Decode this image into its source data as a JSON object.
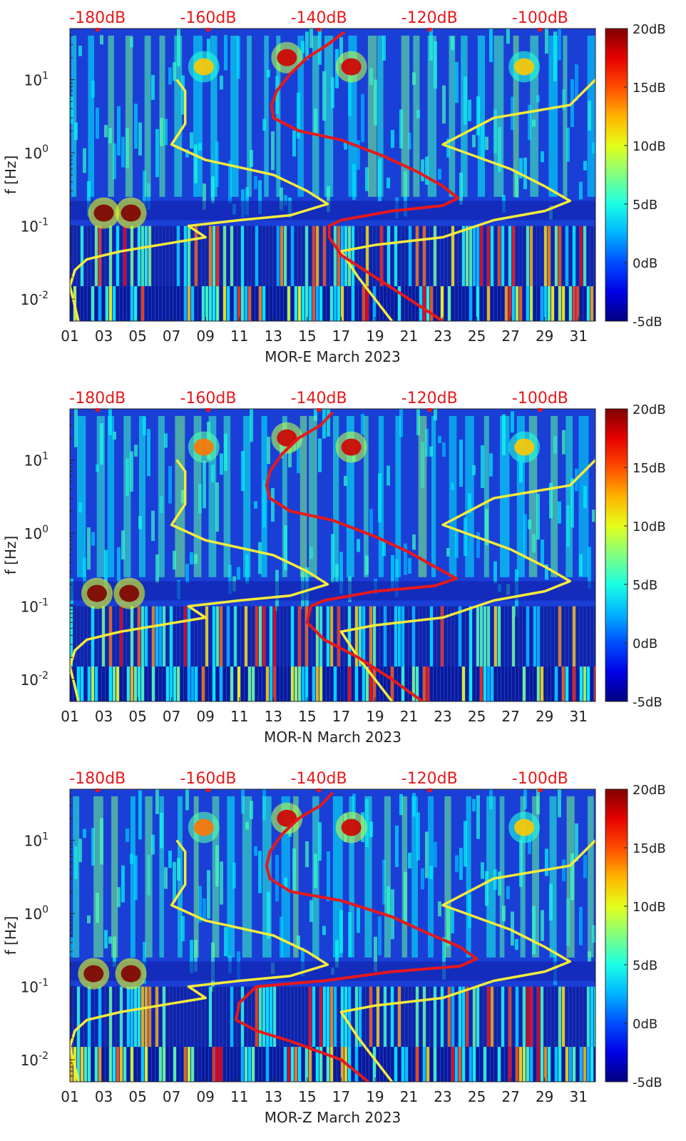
{
  "chart_data": [
    {
      "type": "heatmap",
      "title": "",
      "xlabel": "MOR-E March 2023",
      "ylabel": "f [Hz]",
      "x_ticks": [
        "01",
        "03",
        "05",
        "07",
        "09",
        "11",
        "13",
        "15",
        "17",
        "19",
        "21",
        "23",
        "25",
        "27",
        "29",
        "31"
      ],
      "x_range_days": [
        1,
        32
      ],
      "y_scale": "log",
      "y_range_hz": [
        0.005,
        50
      ],
      "y_ticks": [
        {
          "value": 10,
          "base": "10",
          "exp": "1"
        },
        {
          "value": 1,
          "base": "10",
          "exp": "0"
        },
        {
          "value": 0.1,
          "base": "10",
          "exp": "-1"
        },
        {
          "value": 0.01,
          "base": "10",
          "exp": "-2"
        }
      ],
      "top_axis_ticks": [
        "-180dB",
        "-160dB",
        "-140dB",
        "-120dB",
        "-100dB"
      ],
      "top_axis_range_db": [
        -185,
        -90
      ],
      "colorbar": {
        "ticks": [
          "20dB",
          "15dB",
          "10dB",
          "5dB",
          "0dB",
          "-5dB"
        ],
        "range_db": [
          -5,
          20
        ],
        "colormap": "jet"
      },
      "series": [
        {
          "name": "noise model low",
          "color": "#f5ec3a",
          "points_day_hz": [
            [
              7.3,
              10
            ],
            [
              7.8,
              7
            ],
            [
              7.8,
              2.5
            ],
            [
              7.0,
              1.3
            ],
            [
              9,
              0.8
            ],
            [
              13,
              0.5
            ],
            [
              15,
              0.3
            ],
            [
              16.2,
              0.2
            ],
            [
              14,
              0.14
            ],
            [
              11,
              0.12
            ],
            [
              8,
              0.1
            ],
            [
              9,
              0.07
            ],
            [
              4,
              0.045
            ],
            [
              2,
              0.035
            ],
            [
              1.3,
              0.025
            ],
            [
              1,
              0.015
            ],
            [
              1.3,
              0.008
            ],
            [
              1.5,
              0.005
            ]
          ]
        },
        {
          "name": "noise model high",
          "color": "#f5ec3a",
          "points_day_hz": [
            [
              32,
              10
            ],
            [
              30.5,
              4.5
            ],
            [
              26,
              3
            ],
            [
              23,
              1.3
            ],
            [
              27,
              0.6
            ],
            [
              29,
              0.35
            ],
            [
              30.5,
              0.22
            ],
            [
              29,
              0.16
            ],
            [
              26,
              0.12
            ],
            [
              23,
              0.07
            ],
            [
              19,
              0.055
            ],
            [
              17,
              0.045
            ],
            [
              18,
              0.02
            ],
            [
              19,
              0.01
            ],
            [
              20,
              0.005
            ]
          ]
        },
        {
          "name": "station PSD",
          "color": "#e8181a",
          "points_day_hz": [
            [
              17.2,
              45
            ],
            [
              16.2,
              30
            ],
            [
              15,
              20
            ],
            [
              14,
              12
            ],
            [
              13.2,
              7
            ],
            [
              12.9,
              4.5
            ],
            [
              13,
              3
            ],
            [
              14.5,
              2
            ],
            [
              17,
              1.5
            ],
            [
              19.5,
              0.9
            ],
            [
              21.5,
              0.55
            ],
            [
              23,
              0.35
            ],
            [
              23.9,
              0.24
            ],
            [
              23,
              0.19
            ],
            [
              20,
              0.16
            ],
            [
              17,
              0.12
            ],
            [
              16.3,
              0.1
            ],
            [
              16.3,
              0.07
            ],
            [
              17,
              0.04
            ],
            [
              19,
              0.02
            ],
            [
              21,
              0.01
            ],
            [
              23,
              0.005
            ]
          ]
        }
      ],
      "hot_spots": [
        {
          "day": 3.0,
          "hz": 0.15,
          "level_db": 20
        },
        {
          "day": 4.6,
          "hz": 0.15,
          "level_db": 20
        },
        {
          "day": 13.8,
          "hz": 20,
          "level_db": 18
        },
        {
          "day": 17.6,
          "hz": 15,
          "level_db": 18
        },
        {
          "day": 8.9,
          "hz": 15,
          "level_db": 12
        },
        {
          "day": 27.8,
          "hz": 15,
          "level_db": 12
        }
      ]
    },
    {
      "type": "heatmap",
      "title": "",
      "xlabel": "MOR-N March 2023",
      "ylabel": "f [Hz]",
      "x_ticks": [
        "01",
        "03",
        "05",
        "07",
        "09",
        "11",
        "13",
        "15",
        "17",
        "19",
        "21",
        "23",
        "25",
        "27",
        "29",
        "31"
      ],
      "x_range_days": [
        1,
        32
      ],
      "y_scale": "log",
      "y_range_hz": [
        0.005,
        50
      ],
      "y_ticks": [
        {
          "value": 10,
          "base": "10",
          "exp": "1"
        },
        {
          "value": 1,
          "base": "10",
          "exp": "0"
        },
        {
          "value": 0.1,
          "base": "10",
          "exp": "-1"
        },
        {
          "value": 0.01,
          "base": "10",
          "exp": "-2"
        }
      ],
      "top_axis_ticks": [
        "-180dB",
        "-160dB",
        "-140dB",
        "-120dB",
        "-100dB"
      ],
      "top_axis_range_db": [
        -185,
        -90
      ],
      "colorbar": {
        "ticks": [
          "20dB",
          "15dB",
          "10dB",
          "5dB",
          "0dB",
          "-5dB"
        ],
        "range_db": [
          -5,
          20
        ],
        "colormap": "jet"
      },
      "series": [
        {
          "name": "noise model low",
          "color": "#f5ec3a",
          "points_day_hz": [
            [
              7.3,
              10
            ],
            [
              7.8,
              7
            ],
            [
              7.8,
              2.5
            ],
            [
              7.0,
              1.3
            ],
            [
              9,
              0.8
            ],
            [
              13,
              0.5
            ],
            [
              15,
              0.3
            ],
            [
              16.2,
              0.2
            ],
            [
              14,
              0.14
            ],
            [
              11,
              0.12
            ],
            [
              8,
              0.1
            ],
            [
              9,
              0.07
            ],
            [
              4,
              0.045
            ],
            [
              2,
              0.035
            ],
            [
              1.3,
              0.025
            ],
            [
              1,
              0.015
            ],
            [
              1.3,
              0.008
            ],
            [
              1.5,
              0.005
            ]
          ]
        },
        {
          "name": "noise model high",
          "color": "#f5ec3a",
          "points_day_hz": [
            [
              32,
              10
            ],
            [
              30.5,
              4.5
            ],
            [
              26,
              3
            ],
            [
              23,
              1.3
            ],
            [
              27,
              0.6
            ],
            [
              29,
              0.35
            ],
            [
              30.5,
              0.22
            ],
            [
              29,
              0.16
            ],
            [
              26,
              0.12
            ],
            [
              23,
              0.07
            ],
            [
              19,
              0.055
            ],
            [
              17,
              0.045
            ],
            [
              18,
              0.02
            ],
            [
              19,
              0.01
            ],
            [
              20,
              0.005
            ]
          ]
        },
        {
          "name": "station PSD",
          "color": "#e8181a",
          "points_day_hz": [
            [
              16.5,
              45
            ],
            [
              15.8,
              30
            ],
            [
              14.5,
              20
            ],
            [
              13.5,
              12
            ],
            [
              12.8,
              7
            ],
            [
              12.6,
              4.5
            ],
            [
              12.8,
              3
            ],
            [
              14,
              2
            ],
            [
              16.5,
              1.5
            ],
            [
              19,
              0.9
            ],
            [
              21,
              0.55
            ],
            [
              22.5,
              0.35
            ],
            [
              23.8,
              0.24
            ],
            [
              22.5,
              0.19
            ],
            [
              19,
              0.16
            ],
            [
              16,
              0.12
            ],
            [
              15.2,
              0.1
            ],
            [
              15,
              0.06
            ],
            [
              16,
              0.035
            ],
            [
              18,
              0.02
            ],
            [
              20,
              0.01
            ],
            [
              21.8,
              0.005
            ]
          ]
        }
      ],
      "hot_spots": [
        {
          "day": 2.6,
          "hz": 0.15,
          "level_db": 20
        },
        {
          "day": 4.5,
          "hz": 0.15,
          "level_db": 20
        },
        {
          "day": 13.8,
          "hz": 20,
          "level_db": 18
        },
        {
          "day": 17.6,
          "hz": 15,
          "level_db": 18
        },
        {
          "day": 8.9,
          "hz": 15,
          "level_db": 14
        },
        {
          "day": 27.8,
          "hz": 15,
          "level_db": 12
        }
      ]
    },
    {
      "type": "heatmap",
      "title": "",
      "xlabel": "MOR-Z March 2023",
      "ylabel": "f [Hz]",
      "x_ticks": [
        "01",
        "03",
        "05",
        "07",
        "09",
        "11",
        "13",
        "15",
        "17",
        "19",
        "21",
        "23",
        "25",
        "27",
        "29",
        "31"
      ],
      "x_range_days": [
        1,
        32
      ],
      "y_scale": "log",
      "y_range_hz": [
        0.005,
        50
      ],
      "y_ticks": [
        {
          "value": 10,
          "base": "10",
          "exp": "1"
        },
        {
          "value": 1,
          "base": "10",
          "exp": "0"
        },
        {
          "value": 0.1,
          "base": "10",
          "exp": "-1"
        },
        {
          "value": 0.01,
          "base": "10",
          "exp": "-2"
        }
      ],
      "top_axis_ticks": [
        "-180dB",
        "-160dB",
        "-140dB",
        "-120dB",
        "-100dB"
      ],
      "top_axis_range_db": [
        -185,
        -90
      ],
      "colorbar": {
        "ticks": [
          "20dB",
          "15dB",
          "10dB",
          "5dB",
          "0dB",
          "-5dB"
        ],
        "range_db": [
          -5,
          20
        ],
        "colormap": "jet"
      },
      "series": [
        {
          "name": "noise model low",
          "color": "#f5ec3a",
          "points_day_hz": [
            [
              7.3,
              10
            ],
            [
              7.8,
              7
            ],
            [
              7.8,
              2.5
            ],
            [
              7.0,
              1.3
            ],
            [
              9,
              0.8
            ],
            [
              13,
              0.5
            ],
            [
              15,
              0.3
            ],
            [
              16.2,
              0.2
            ],
            [
              14,
              0.14
            ],
            [
              11,
              0.12
            ],
            [
              8,
              0.1
            ],
            [
              9,
              0.07
            ],
            [
              4,
              0.045
            ],
            [
              2,
              0.035
            ],
            [
              1.3,
              0.025
            ],
            [
              1,
              0.015
            ],
            [
              1.3,
              0.008
            ],
            [
              1.5,
              0.005
            ]
          ]
        },
        {
          "name": "noise model high",
          "color": "#f5ec3a",
          "points_day_hz": [
            [
              32,
              10
            ],
            [
              30.5,
              4.5
            ],
            [
              26,
              3
            ],
            [
              23,
              1.3
            ],
            [
              27,
              0.6
            ],
            [
              29,
              0.35
            ],
            [
              30.5,
              0.22
            ],
            [
              29,
              0.16
            ],
            [
              26,
              0.12
            ],
            [
              23,
              0.07
            ],
            [
              19,
              0.055
            ],
            [
              17,
              0.045
            ],
            [
              18,
              0.02
            ],
            [
              19,
              0.01
            ],
            [
              20,
              0.005
            ]
          ]
        },
        {
          "name": "station PSD",
          "color": "#e8181a",
          "points_day_hz": [
            [
              16.5,
              45
            ],
            [
              15.8,
              30
            ],
            [
              14.5,
              20
            ],
            [
              13.5,
              12
            ],
            [
              12.8,
              7
            ],
            [
              12.6,
              4.5
            ],
            [
              12.8,
              3
            ],
            [
              14,
              2
            ],
            [
              17,
              1.5
            ],
            [
              20,
              0.9
            ],
            [
              22,
              0.55
            ],
            [
              24,
              0.35
            ],
            [
              25,
              0.24
            ],
            [
              24,
              0.19
            ],
            [
              20,
              0.16
            ],
            [
              16,
              0.12
            ],
            [
              12,
              0.1
            ],
            [
              11,
              0.06
            ],
            [
              10.8,
              0.035
            ],
            [
              12,
              0.025
            ],
            [
              14,
              0.018
            ],
            [
              17,
              0.01
            ],
            [
              18.6,
              0.005
            ]
          ]
        }
      ],
      "hot_spots": [
        {
          "day": 2.4,
          "hz": 0.15,
          "level_db": 20
        },
        {
          "day": 4.6,
          "hz": 0.15,
          "level_db": 20
        },
        {
          "day": 13.8,
          "hz": 20,
          "level_db": 18
        },
        {
          "day": 17.6,
          "hz": 15,
          "level_db": 18
        },
        {
          "day": 8.9,
          "hz": 15,
          "level_db": 14
        },
        {
          "day": 27.8,
          "hz": 15,
          "level_db": 12
        }
      ]
    }
  ]
}
